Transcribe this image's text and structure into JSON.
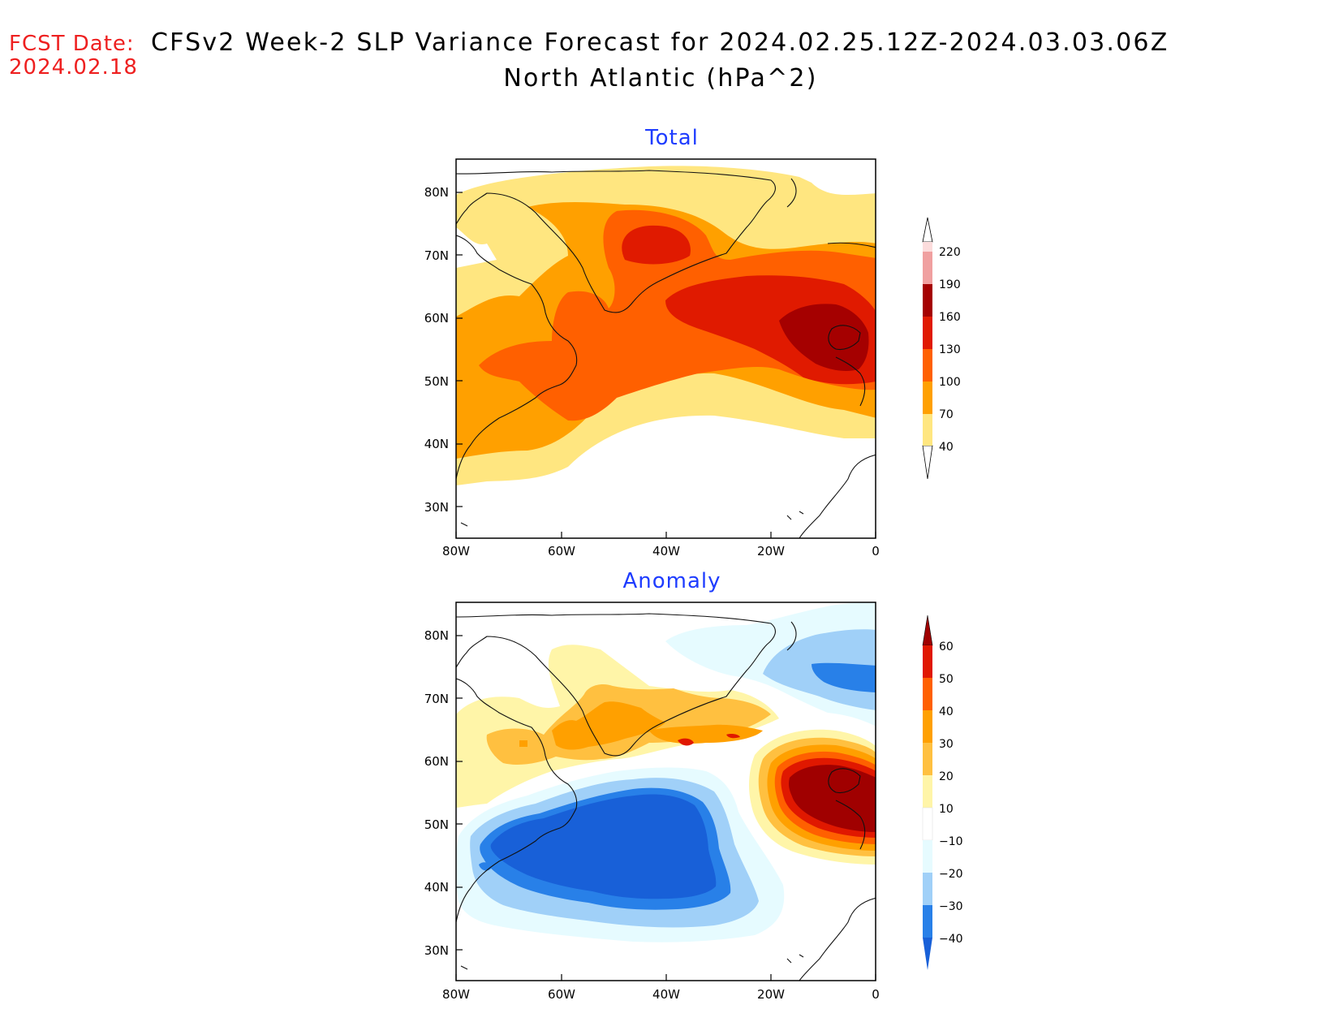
{
  "header": {
    "fcst_label": "FCST Date:",
    "fcst_date": "2024.02.18",
    "title_line1": "CFSv2 Week-2 SLP Variance Forecast for 2024.02.25.12Z-2024.03.03.06Z",
    "title_line2": "North Atlantic (hPa^2)"
  },
  "colors": {
    "header_red": "#ee2020",
    "panel_title_blue": "#1e3cff"
  },
  "panels": [
    {
      "title": "Total",
      "lat_labels": [
        "80N",
        "70N",
        "60N",
        "50N",
        "40N",
        "30N"
      ],
      "lat_values": [
        80,
        70,
        60,
        50,
        40,
        30
      ],
      "lon_labels": [
        "80W",
        "60W",
        "40W",
        "20W",
        "0"
      ],
      "lon_values": [
        -80,
        -60,
        -40,
        -20,
        0
      ],
      "colorbar": {
        "levels": [
          "40",
          "70",
          "100",
          "130",
          "160",
          "190",
          "220"
        ],
        "colors": [
          "#ffe680",
          "#ffa000",
          "#ff6000",
          "#e01a00",
          "#a50000",
          "#f0a0a0",
          "#fcdcdc"
        ]
      },
      "fields": [
        {
          "level": 40,
          "color": "#ffe680"
        },
        {
          "level": 70,
          "color": "#ffa000"
        },
        {
          "level": 100,
          "color": "#ff6000"
        },
        {
          "level": 130,
          "color": "#e01a00"
        },
        {
          "level": 160,
          "color": "#a50000"
        }
      ]
    },
    {
      "title": "Anomaly",
      "lat_labels": [
        "80N",
        "70N",
        "60N",
        "50N",
        "40N",
        "30N"
      ],
      "lat_values": [
        80,
        70,
        60,
        50,
        40,
        30
      ],
      "lon_labels": [
        "80W",
        "60W",
        "40W",
        "20W",
        "0"
      ],
      "lon_values": [
        -80,
        -60,
        -40,
        -20,
        0
      ],
      "colorbar": {
        "levels": [
          "60",
          "50",
          "40",
          "30",
          "20",
          "10",
          "−10",
          "−20",
          "−30",
          "−40"
        ],
        "colors": [
          "#a00000",
          "#e01800",
          "#ff6000",
          "#ffa000",
          "#ffc040",
          "#fff5a8",
          "#ffffff",
          "#e6fbff",
          "#a0d0f8",
          "#2880e8",
          "#1860d8"
        ]
      },
      "fields": [
        {
          "level": 10,
          "color": "#fff5a8"
        },
        {
          "level": 20,
          "color": "#ffc040"
        },
        {
          "level": 30,
          "color": "#ffa000"
        },
        {
          "level": 40,
          "color": "#ff6000"
        },
        {
          "level": 50,
          "color": "#e01800"
        },
        {
          "level": 60,
          "color": "#a00000"
        },
        {
          "level": -10,
          "color": "#e6fbff"
        },
        {
          "level": -20,
          "color": "#a0d0f8"
        },
        {
          "level": -30,
          "color": "#2880e8"
        },
        {
          "level": -40,
          "color": "#1860d8"
        }
      ]
    }
  ]
}
